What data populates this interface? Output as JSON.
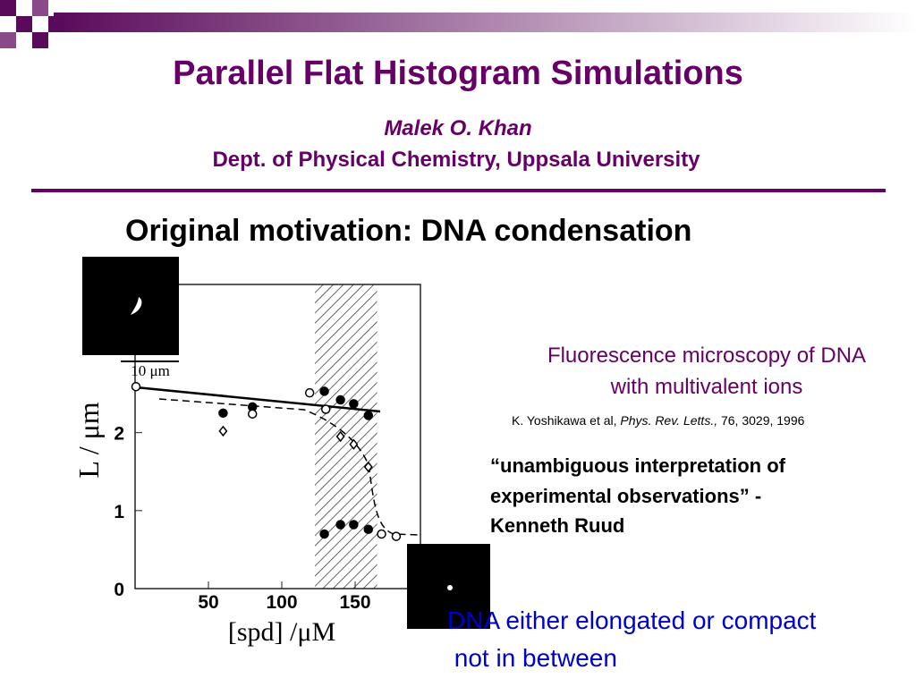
{
  "header": {
    "title": "Parallel Flat Histogram Simulations",
    "author": "Malek O. Khan",
    "affiliation": "Dept. of Physical Chemistry, Uppsala University"
  },
  "subtitle": "Original motivation: DNA condensation",
  "figure": {
    "scale_bar": "10 μm",
    "xlabel": "[spd] /μM",
    "ylabel": "L / μm",
    "xlim": [
      0,
      194.5
    ],
    "ylim": [
      0,
      3.9
    ],
    "xticks": [
      50,
      100,
      150
    ],
    "yticks": [
      0,
      1,
      2
    ],
    "shaded": [
      122.6,
      165
    ],
    "series": [
      {
        "name": "filled",
        "color": "#000000",
        "x": [
          60,
          80,
          129,
          140,
          149,
          159,
          129,
          140,
          149,
          159
        ],
        "values": [
          2.25,
          2.33,
          2.53,
          2.42,
          2.37,
          2.22,
          0.7,
          0.82,
          0.82,
          0.76
        ]
      },
      {
        "name": "open",
        "color": "#000000",
        "x": [
          0.6,
          80,
          119,
          130,
          168,
          178
        ],
        "values": [
          2.59,
          2.24,
          2.51,
          2.3,
          0.7,
          0.67
        ]
      },
      {
        "name": "diamond",
        "color": "#000000",
        "x": [
          60,
          140,
          149,
          159
        ],
        "values": [
          2.02,
          1.95,
          1.85,
          1.56
        ]
      }
    ]
  },
  "caption": [
    "Fluorescence microscopy of DNA",
    "with multivalent ions"
  ],
  "reference": [
    "K. Yoshikawa et al, ",
    "Phys. Rev. Letts.,",
    " 76, 3029, 1996"
  ],
  "quote": [
    "“unambiguous interpretation of",
    "experimental observations” -",
    "Kenneth Ruud"
  ],
  "conclusion": [
    "DNA either elongated or compact",
    " not in between"
  ]
}
